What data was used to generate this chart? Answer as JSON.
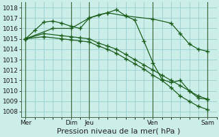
{
  "background_color": "#cceee8",
  "grid_color": "#99cccc",
  "line_color": "#1a5c1a",
  "ylim": [
    1007.5,
    1018.5
  ],
  "yticks": [
    1008,
    1009,
    1010,
    1011,
    1012,
    1013,
    1014,
    1015,
    1016,
    1017,
    1018
  ],
  "xlabel": "Pression niveau de la mer( hPa )",
  "xlabel_fontsize": 8,
  "tick_fontsize": 6.5,
  "xtick_labels": [
    "Mer",
    "",
    "Dim",
    "Jeu",
    "",
    "Ven",
    "",
    "Sam"
  ],
  "xtick_positions": [
    0,
    2,
    5,
    7,
    10,
    14,
    17,
    20
  ],
  "xlim": [
    -0.5,
    21
  ],
  "num_xticks": 21,
  "lines": [
    {
      "x": [
        0,
        1,
        2,
        3,
        4,
        5,
        6,
        7,
        8,
        9,
        10,
        11,
        12,
        13,
        14,
        15,
        16,
        17,
        18,
        19,
        20
      ],
      "y": [
        1015.0,
        1015.8,
        1016.6,
        1016.7,
        1016.5,
        1016.2,
        1016.0,
        1017.0,
        1017.3,
        1017.5,
        1017.8,
        1017.2,
        1016.8,
        1014.8,
        1012.7,
        1011.1,
        1010.8,
        1011.0,
        1010.0,
        1009.3,
        1009.2
      ],
      "has_markers": true,
      "marker_x": [
        0,
        2,
        4,
        6,
        7,
        9,
        11,
        13,
        14,
        16,
        17,
        20
      ]
    },
    {
      "x": [
        0,
        3,
        5,
        7,
        9,
        11,
        14,
        16,
        17,
        18,
        19,
        20
      ],
      "y": [
        1015.0,
        1016.0,
        1016.0,
        1017.0,
        1017.5,
        1017.2,
        1016.9,
        1016.5,
        1015.5,
        1014.5,
        1014.0,
        1013.8
      ],
      "has_markers": false
    },
    {
      "x": [
        0,
        2,
        4,
        5,
        6,
        7,
        8,
        9,
        10,
        11,
        12,
        13,
        14,
        15,
        16,
        17,
        18,
        19,
        20
      ],
      "y": [
        1015.0,
        1015.5,
        1015.3,
        1015.2,
        1015.1,
        1015.0,
        1014.6,
        1014.3,
        1014.0,
        1013.5,
        1013.0,
        1012.5,
        1012.0,
        1011.5,
        1011.0,
        1010.5,
        1010.0,
        1009.5,
        1009.2
      ],
      "has_markers": false
    },
    {
      "x": [
        0,
        2,
        4,
        5,
        6,
        7,
        8,
        9,
        10,
        11,
        12,
        13,
        14,
        15,
        16,
        17,
        18,
        19,
        20
      ],
      "y": [
        1015.0,
        1015.2,
        1015.0,
        1014.9,
        1014.8,
        1014.7,
        1014.3,
        1014.0,
        1013.6,
        1013.1,
        1012.6,
        1012.1,
        1011.5,
        1011.0,
        1010.3,
        1009.5,
        1009.0,
        1008.5,
        1008.2
      ],
      "has_markers": false
    }
  ],
  "vlines_x": [
    0,
    5,
    7,
    14,
    20
  ],
  "vline_color": "#336633",
  "figsize": [
    3.2,
    2.0
  ],
  "dpi": 100,
  "plot_bg": "#cceee8"
}
